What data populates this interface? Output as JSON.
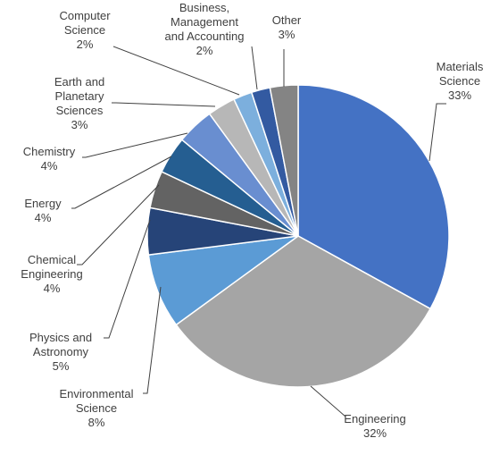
{
  "chart_data": {
    "type": "pie",
    "title": "",
    "slices": [
      {
        "name": "Materials Science",
        "label_lines": [
          "Materials",
          "Science"
        ],
        "percent_label": "33%",
        "value": 33,
        "color": "#4472C4"
      },
      {
        "name": "Engineering",
        "label_lines": [
          "Engineering"
        ],
        "percent_label": "32%",
        "value": 32,
        "color": "#A5A5A5"
      },
      {
        "name": "Environmental Science",
        "label_lines": [
          "Environmental",
          "Science"
        ],
        "percent_label": "8%",
        "value": 8,
        "color": "#5B9BD5"
      },
      {
        "name": "Physics and Astronomy",
        "label_lines": [
          "Physics and",
          "Astronomy"
        ],
        "percent_label": "5%",
        "value": 5,
        "color": "#264478"
      },
      {
        "name": "Chemical Engineering",
        "label_lines": [
          "Chemical",
          "Engineering"
        ],
        "percent_label": "4%",
        "value": 4,
        "color": "#636363"
      },
      {
        "name": "Energy",
        "label_lines": [
          "Energy"
        ],
        "percent_label": "4%",
        "value": 4,
        "color": "#255E91"
      },
      {
        "name": "Chemistry",
        "label_lines": [
          "Chemistry"
        ],
        "percent_label": "4%",
        "value": 4,
        "color": "#698ED0"
      },
      {
        "name": "Earth and Planetary Sciences",
        "label_lines": [
          "Earth and",
          "Planetary",
          "Sciences"
        ],
        "percent_label": "3%",
        "value": 3,
        "color": "#B7B7B7"
      },
      {
        "name": "Computer Science",
        "label_lines": [
          "Computer",
          "Science"
        ],
        "percent_label": "2%",
        "value": 2,
        "color": "#7CAFDD"
      },
      {
        "name": "Business, Management and Accounting",
        "label_lines": [
          "Business,",
          "Management",
          "and Accounting"
        ],
        "percent_label": "2%",
        "value": 2,
        "color": "#335AA1"
      },
      {
        "name": "Other",
        "label_lines": [
          "Other"
        ],
        "percent_label": "3%",
        "value": 3,
        "color": "#848484"
      }
    ]
  }
}
